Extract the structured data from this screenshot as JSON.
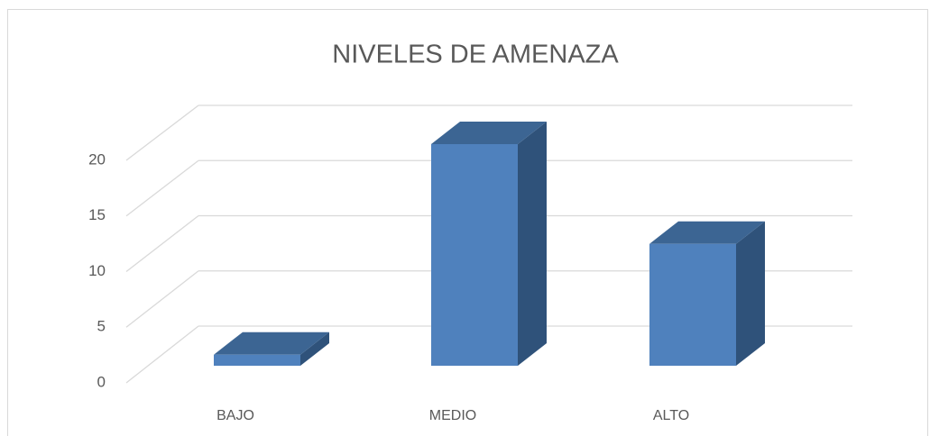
{
  "chart_data": {
    "type": "bar3d",
    "title": "NIVELES DE AMENAZA",
    "categories": [
      "BAJO",
      "MEDIO",
      "ALTO"
    ],
    "values": [
      1,
      20,
      11
    ],
    "color": "#4f81bd",
    "ylim": [
      0,
      20
    ],
    "yticks": [
      0,
      5,
      10,
      15,
      20
    ],
    "grid": true
  }
}
